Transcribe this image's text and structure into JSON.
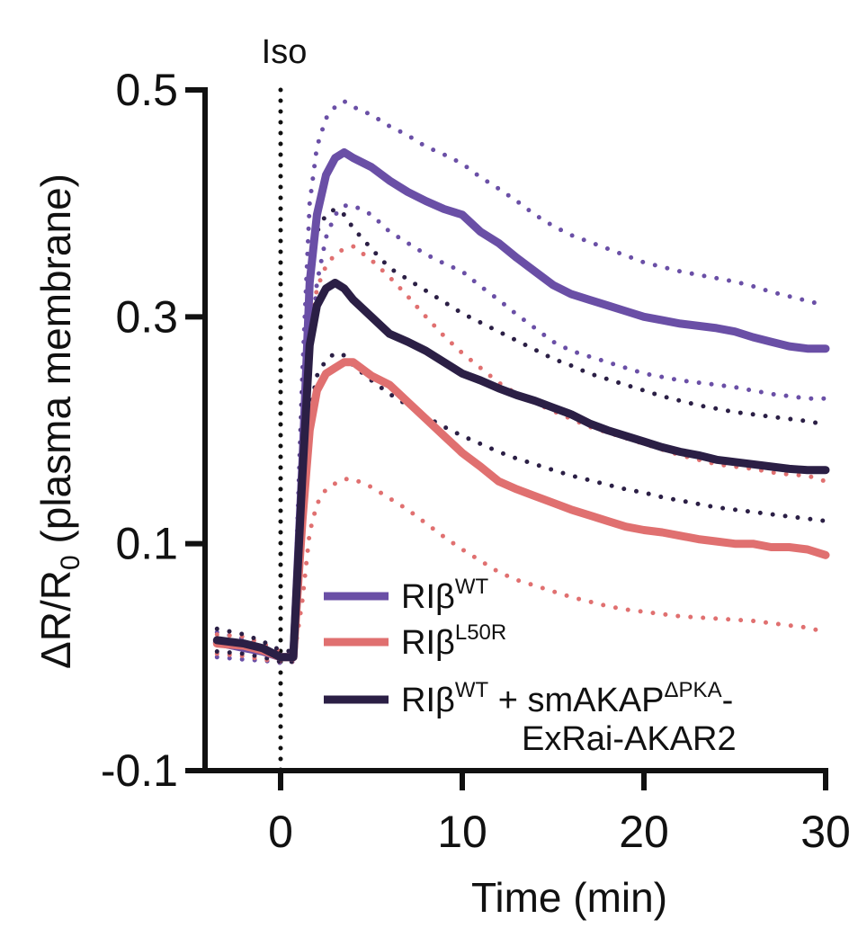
{
  "chart_data": {
    "type": "line",
    "title": "",
    "xlabel": "Time (min)",
    "ylabel_parts": {
      "main": "ΔR/R",
      "sub": "0",
      "rest": " (plasma membrane)"
    },
    "xlim": [
      -4,
      30
    ],
    "ylim": [
      -0.1,
      0.5
    ],
    "x_ticks": [
      0,
      10,
      20,
      30
    ],
    "x_tick_labels": [
      "0",
      "10",
      "20",
      "30"
    ],
    "y_ticks": [
      -0.1,
      0.1,
      0.3,
      0.5
    ],
    "y_tick_labels": [
      "-0.1",
      "0.1",
      "0.3",
      "0.5"
    ],
    "grid": false,
    "annotations": [
      {
        "text": "Iso",
        "x": 0,
        "style": "dotted-vertical-line"
      }
    ],
    "legend": {
      "placement": "bottom-right",
      "entries": [
        {
          "series": 0,
          "base": "RIβ",
          "sup": "WT",
          "after": "",
          "after_sup": "",
          "after_tail": "",
          "line2": ""
        },
        {
          "series": 1,
          "base": "RIβ",
          "sup": "L50R",
          "after": "",
          "after_sup": "",
          "after_tail": "",
          "line2": ""
        },
        {
          "series": 2,
          "base": "RIβ",
          "sup": "WT",
          "after": " + smAKAP",
          "after_sup": "ΔPKA",
          "after_tail": "-",
          "line2": "ExRai-AKAR2"
        }
      ]
    },
    "series": [
      {
        "name": "RIβWT",
        "color": "#6a4fa6",
        "x": [
          -3.5,
          -2,
          -1,
          0,
          0.7,
          1.2,
          1.6,
          2,
          2.5,
          3,
          3.5,
          4,
          5,
          6,
          7,
          8,
          9,
          10,
          11,
          12,
          13,
          14,
          15,
          16,
          17,
          18,
          19,
          20,
          21,
          22,
          23,
          24,
          25,
          26,
          27,
          28,
          29,
          30
        ],
        "values": [
          0.013,
          0.008,
          0.005,
          0.0,
          0.0,
          0.17,
          0.33,
          0.39,
          0.425,
          0.44,
          0.445,
          0.44,
          0.432,
          0.42,
          0.41,
          0.402,
          0.395,
          0.39,
          0.375,
          0.365,
          0.352,
          0.34,
          0.328,
          0.32,
          0.315,
          0.31,
          0.305,
          0.3,
          0.297,
          0.294,
          0.292,
          0.29,
          0.287,
          0.282,
          0.278,
          0.274,
          0.272,
          0.272
        ],
        "upper": [
          0.022,
          0.016,
          0.012,
          0.005,
          0.004,
          0.25,
          0.4,
          0.45,
          0.475,
          0.485,
          0.49,
          0.485,
          0.478,
          0.468,
          0.46,
          0.45,
          0.443,
          0.435,
          0.423,
          0.413,
          0.402,
          0.39,
          0.38,
          0.372,
          0.366,
          0.36,
          0.354,
          0.348,
          0.344,
          0.34,
          0.337,
          0.334,
          0.331,
          0.327,
          0.322,
          0.318,
          0.314,
          0.31
        ],
        "lower": [
          0.0,
          -0.002,
          -0.003,
          -0.005,
          -0.004,
          0.12,
          0.26,
          0.33,
          0.37,
          0.39,
          0.398,
          0.398,
          0.39,
          0.375,
          0.365,
          0.355,
          0.347,
          0.34,
          0.327,
          0.315,
          0.302,
          0.29,
          0.278,
          0.27,
          0.265,
          0.26,
          0.255,
          0.25,
          0.247,
          0.244,
          0.242,
          0.24,
          0.238,
          0.235,
          0.232,
          0.23,
          0.228,
          0.228
        ]
      },
      {
        "name": "RIβL50R",
        "color": "#e07070",
        "x": [
          -3.5,
          -2,
          -1,
          0,
          0.7,
          1.2,
          1.6,
          2,
          2.5,
          3,
          3.5,
          4,
          5,
          6,
          7,
          8,
          9,
          10,
          11,
          12,
          13,
          14,
          15,
          16,
          17,
          18,
          19,
          20,
          21,
          22,
          23,
          24,
          25,
          26,
          27,
          28,
          29,
          30
        ],
        "values": [
          0.012,
          0.01,
          0.006,
          0.0,
          0.0,
          0.12,
          0.2,
          0.235,
          0.25,
          0.255,
          0.26,
          0.26,
          0.248,
          0.24,
          0.225,
          0.21,
          0.195,
          0.18,
          0.168,
          0.155,
          0.148,
          0.142,
          0.136,
          0.13,
          0.125,
          0.12,
          0.115,
          0.112,
          0.11,
          0.107,
          0.104,
          0.102,
          0.1,
          0.1,
          0.097,
          0.097,
          0.095,
          0.09
        ],
        "upper": [
          0.02,
          0.018,
          0.012,
          0.005,
          0.004,
          0.19,
          0.28,
          0.325,
          0.345,
          0.355,
          0.36,
          0.362,
          0.35,
          0.335,
          0.318,
          0.3,
          0.283,
          0.268,
          0.255,
          0.242,
          0.232,
          0.224,
          0.217,
          0.21,
          0.203,
          0.198,
          0.193,
          0.188,
          0.183,
          0.178,
          0.174,
          0.17,
          0.168,
          0.166,
          0.163,
          0.161,
          0.16,
          0.155
        ],
        "lower": [
          0.003,
          0.001,
          -0.002,
          -0.004,
          -0.004,
          0.05,
          0.11,
          0.135,
          0.148,
          0.153,
          0.157,
          0.157,
          0.15,
          0.14,
          0.13,
          0.118,
          0.106,
          0.095,
          0.085,
          0.075,
          0.068,
          0.063,
          0.058,
          0.053,
          0.049,
          0.045,
          0.042,
          0.04,
          0.038,
          0.036,
          0.035,
          0.034,
          0.033,
          0.032,
          0.03,
          0.028,
          0.026,
          0.022
        ]
      },
      {
        "name": "RIβWT + smAKAPΔPKA-ExRai-AKAR2",
        "color": "#2b1f45",
        "x": [
          -3.5,
          -2,
          -1,
          0,
          0.7,
          1.2,
          1.6,
          2,
          2.5,
          3,
          3.5,
          4,
          5,
          6,
          7,
          8,
          9,
          10,
          11,
          12,
          13,
          14,
          15,
          16,
          17,
          18,
          19,
          20,
          21,
          22,
          23,
          24,
          25,
          26,
          27,
          28,
          29,
          30
        ],
        "values": [
          0.015,
          0.012,
          0.008,
          0.0,
          0.0,
          0.16,
          0.275,
          0.31,
          0.325,
          0.33,
          0.325,
          0.315,
          0.3,
          0.285,
          0.278,
          0.27,
          0.26,
          0.25,
          0.244,
          0.237,
          0.231,
          0.226,
          0.22,
          0.214,
          0.206,
          0.2,
          0.195,
          0.19,
          0.185,
          0.181,
          0.178,
          0.174,
          0.172,
          0.17,
          0.168,
          0.166,
          0.165,
          0.165
        ],
        "upper": [
          0.025,
          0.02,
          0.014,
          0.006,
          0.005,
          0.23,
          0.34,
          0.375,
          0.39,
          0.395,
          0.39,
          0.378,
          0.36,
          0.343,
          0.333,
          0.323,
          0.313,
          0.303,
          0.295,
          0.287,
          0.279,
          0.271,
          0.263,
          0.257,
          0.25,
          0.245,
          0.24,
          0.235,
          0.23,
          0.226,
          0.222,
          0.219,
          0.216,
          0.214,
          0.212,
          0.21,
          0.208,
          0.205
        ],
        "lower": [
          0.005,
          0.003,
          0.0,
          -0.004,
          -0.004,
          0.1,
          0.215,
          0.248,
          0.262,
          0.268,
          0.266,
          0.257,
          0.244,
          0.232,
          0.222,
          0.212,
          0.203,
          0.195,
          0.188,
          0.181,
          0.175,
          0.17,
          0.165,
          0.16,
          0.156,
          0.152,
          0.148,
          0.145,
          0.141,
          0.138,
          0.135,
          0.132,
          0.13,
          0.128,
          0.126,
          0.124,
          0.122,
          0.12
        ]
      }
    ]
  }
}
